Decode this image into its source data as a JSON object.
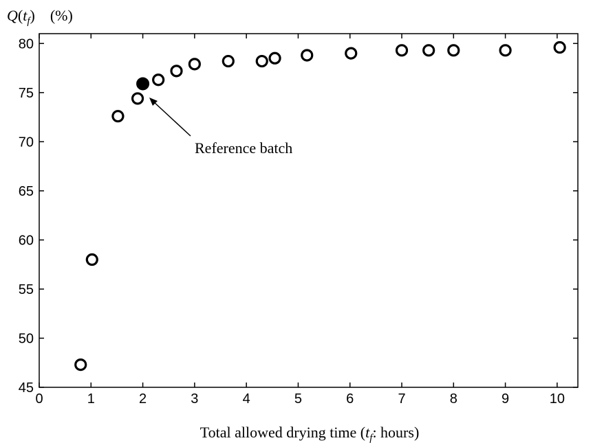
{
  "chart_data": {
    "type": "scatter",
    "ylabel": {
      "q": "Q",
      "open": "(",
      "sub": "t",
      "subsub": "f",
      "close": ")",
      "unit": "(%)"
    },
    "xlabel": {
      "pre": "Total allowed drying time (",
      "var": "t",
      "sub": "f",
      "post": ": hours)"
    },
    "xlim": [
      0,
      10.4
    ],
    "ylim": [
      45,
      81
    ],
    "xticks": [
      0,
      1,
      2,
      3,
      4,
      5,
      6,
      7,
      8,
      9,
      10
    ],
    "yticks": [
      45,
      50,
      55,
      60,
      65,
      70,
      75,
      80
    ],
    "grid": false,
    "series": [
      {
        "marker": "open-circle",
        "points": [
          {
            "x": 0.8,
            "y": 47.3
          },
          {
            "x": 1.02,
            "y": 58.0
          },
          {
            "x": 1.52,
            "y": 72.6
          },
          {
            "x": 1.9,
            "y": 74.4
          },
          {
            "x": 2.3,
            "y": 76.3
          },
          {
            "x": 2.65,
            "y": 77.2
          },
          {
            "x": 3.0,
            "y": 77.9
          },
          {
            "x": 3.65,
            "y": 78.2
          },
          {
            "x": 4.3,
            "y": 78.2
          },
          {
            "x": 4.55,
            "y": 78.5
          },
          {
            "x": 5.17,
            "y": 78.8
          },
          {
            "x": 6.02,
            "y": 79.0
          },
          {
            "x": 7.0,
            "y": 79.3
          },
          {
            "x": 7.52,
            "y": 79.3
          },
          {
            "x": 8.0,
            "y": 79.3
          },
          {
            "x": 9.0,
            "y": 79.3
          },
          {
            "x": 10.05,
            "y": 79.6
          }
        ]
      },
      {
        "marker": "filled-circle",
        "points": [
          {
            "x": 2.0,
            "y": 75.9
          }
        ]
      }
    ],
    "annotations": [
      {
        "text": "Reference batch",
        "target": {
          "x": 2.0,
          "y": 75.9
        }
      }
    ]
  }
}
